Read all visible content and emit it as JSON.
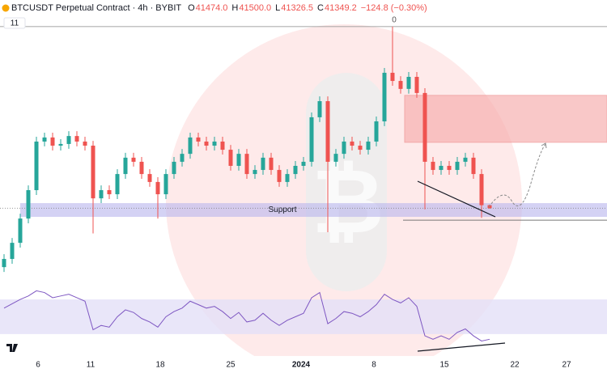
{
  "chart_data": {
    "type": "candlestick",
    "title": "BTCUSDT Perpetual Contract · 4h · BYBIT",
    "ohlc": [
      {
        "key": "O",
        "label": "41474.0"
      },
      {
        "key": "H",
        "label": "41500.0"
      },
      {
        "key": "L",
        "label": "41326.5"
      },
      {
        "key": "C",
        "label": "41349.2"
      }
    ],
    "change": "−124.8 (−0.30%)",
    "indicator": "11",
    "peak_label": "0",
    "support_label": "Support",
    "x_labels": [
      "6",
      "11",
      "18",
      "25",
      "2024",
      "8",
      "15",
      "22",
      "27"
    ],
    "ylim": [
      38400,
      49400
    ],
    "up_color": "#26a69a",
    "down_color": "#ef5350",
    "open": [
      38900,
      39240,
      39910,
      40920,
      42100,
      44120,
      44290,
      43950,
      44020,
      44350,
      44120,
      43950,
      41760,
      42100,
      41930,
      42770,
      43450,
      43280,
      42770,
      42440,
      41930,
      42770,
      43280,
      43610,
      44290,
      44120,
      43950,
      44120,
      43780,
      43110,
      43610,
      42770,
      42940,
      43450,
      42940,
      42440,
      42770,
      43110,
      43280,
      45130,
      45800,
      43280,
      43610,
      44120,
      43950,
      43780,
      44120,
      44960,
      46980,
      46640,
      46310,
      46810,
      46140,
      43280,
      42940,
      43110,
      42940,
      43280,
      43450,
      42770,
      41474
    ],
    "high": [
      39440,
      40110,
      41120,
      42300,
      44320,
      44490,
      44490,
      44220,
      44550,
      44550,
      44320,
      44150,
      42300,
      42300,
      42970,
      43650,
      43650,
      43480,
      42970,
      42640,
      42970,
      43480,
      43810,
      44490,
      44490,
      44320,
      44320,
      44320,
      43980,
      43810,
      43810,
      43140,
      43650,
      43650,
      43140,
      42970,
      43310,
      43480,
      45330,
      46000,
      46000,
      43810,
      44320,
      44320,
      44150,
      44320,
      45160,
      47180,
      48900,
      46840,
      47010,
      47010,
      46340,
      43480,
      43310,
      43310,
      43480,
      43650,
      43650,
      42970,
      41500
    ],
    "low": [
      38700,
      39040,
      39710,
      40720,
      41900,
      43920,
      43750,
      43750,
      43820,
      43920,
      43750,
      40300,
      41560,
      41730,
      41730,
      42570,
      43080,
      42570,
      42240,
      40920,
      41730,
      42570,
      43080,
      43410,
      43920,
      43750,
      43750,
      43580,
      42910,
      42910,
      42570,
      42570,
      42740,
      42740,
      42240,
      42240,
      42570,
      42910,
      43080,
      44930,
      40350,
      43080,
      43410,
      43750,
      43580,
      43580,
      43920,
      44760,
      46440,
      46110,
      46110,
      45940,
      41300,
      42740,
      42740,
      42740,
      42740,
      43080,
      42570,
      40950,
      41326.5
    ],
    "close": [
      39240,
      39910,
      40920,
      42100,
      44120,
      44290,
      43950,
      44020,
      44350,
      44120,
      43950,
      41760,
      42100,
      41930,
      42770,
      43450,
      43280,
      42770,
      42440,
      41930,
      42770,
      43280,
      43610,
      44290,
      44120,
      43950,
      44120,
      43780,
      43110,
      43610,
      42770,
      42940,
      43450,
      42940,
      42440,
      42770,
      43110,
      43280,
      45130,
      45800,
      43280,
      43610,
      44120,
      43950,
      43780,
      44120,
      44960,
      46980,
      46640,
      46310,
      46810,
      46140,
      43280,
      42940,
      43110,
      42940,
      43280,
      43450,
      42770,
      41474,
      41349.2
    ],
    "peak_line": 48900,
    "support_zone": [
      40990,
      41560
    ],
    "supply_zone": [
      44090,
      46040
    ],
    "support_line": 40850,
    "rsi": [
      60,
      65,
      70,
      74,
      80,
      78,
      72,
      74,
      76,
      72,
      68,
      35,
      40,
      38,
      50,
      58,
      55,
      48,
      44,
      38,
      50,
      56,
      60,
      68,
      64,
      60,
      62,
      56,
      48,
      55,
      44,
      46,
      54,
      46,
      40,
      46,
      50,
      54,
      72,
      78,
      42,
      48,
      56,
      54,
      50,
      56,
      64,
      76,
      70,
      66,
      72,
      62,
      28,
      24,
      28,
      24,
      32,
      36,
      28,
      22,
      24
    ],
    "rsi_ylim": [
      0,
      100
    ],
    "rsi_band": [
      30,
      70
    ],
    "rsi_color": "#7e57c2"
  }
}
